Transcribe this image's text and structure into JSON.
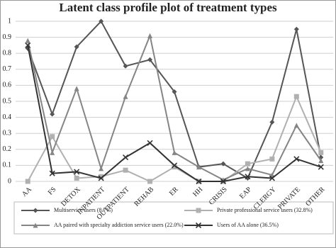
{
  "chart_data": {
    "type": "line",
    "title": "Latent class profile plot of treatment types",
    "categories": [
      "AA",
      "FS",
      "DETOX",
      "INPATIENT",
      "OUTPATIENT",
      "REHAB",
      "ER",
      "HH",
      "CRISIS",
      "EAP",
      "CLERGY",
      "PRIVATE",
      "OTHER"
    ],
    "series": [
      {
        "name": "Multiservice users (8.7%)",
        "color": "#555555",
        "marker": "diamond",
        "values": [
          0.83,
          0.42,
          0.84,
          1.0,
          0.72,
          0.76,
          0.56,
          0.09,
          0.11,
          0.02,
          0.37,
          0.95,
          0.15
        ]
      },
      {
        "name": "Private professional service users (32.8%)",
        "color": "#b0b0b0",
        "marker": "square",
        "values": [
          0,
          0.28,
          0.02,
          0.03,
          0.07,
          0,
          0.09,
          0,
          0,
          0.11,
          0.14,
          0.53,
          0.18
        ]
      },
      {
        "name": "AA paired with specialty addiction service users (22.0%)",
        "color": "#858585",
        "marker": "triangle",
        "values": [
          0.88,
          0.18,
          0.58,
          0.08,
          0.53,
          0.91,
          0.18,
          0.09,
          0.01,
          0.08,
          0.04,
          0.35,
          0.13
        ]
      },
      {
        "name": "Users of AA alone (36.5%)",
        "color": "#333333",
        "marker": "x",
        "values": [
          0.85,
          0.05,
          0.06,
          0.02,
          0.15,
          0.24,
          0.1,
          0,
          0,
          0.03,
          0.02,
          0.14,
          0.09
        ]
      }
    ],
    "ylim": [
      0,
      1
    ],
    "yticks": [
      0,
      0.1,
      0.2,
      0.3,
      0.4,
      0.5,
      0.6,
      0.7,
      0.8,
      0.9,
      1
    ],
    "grid": true
  }
}
